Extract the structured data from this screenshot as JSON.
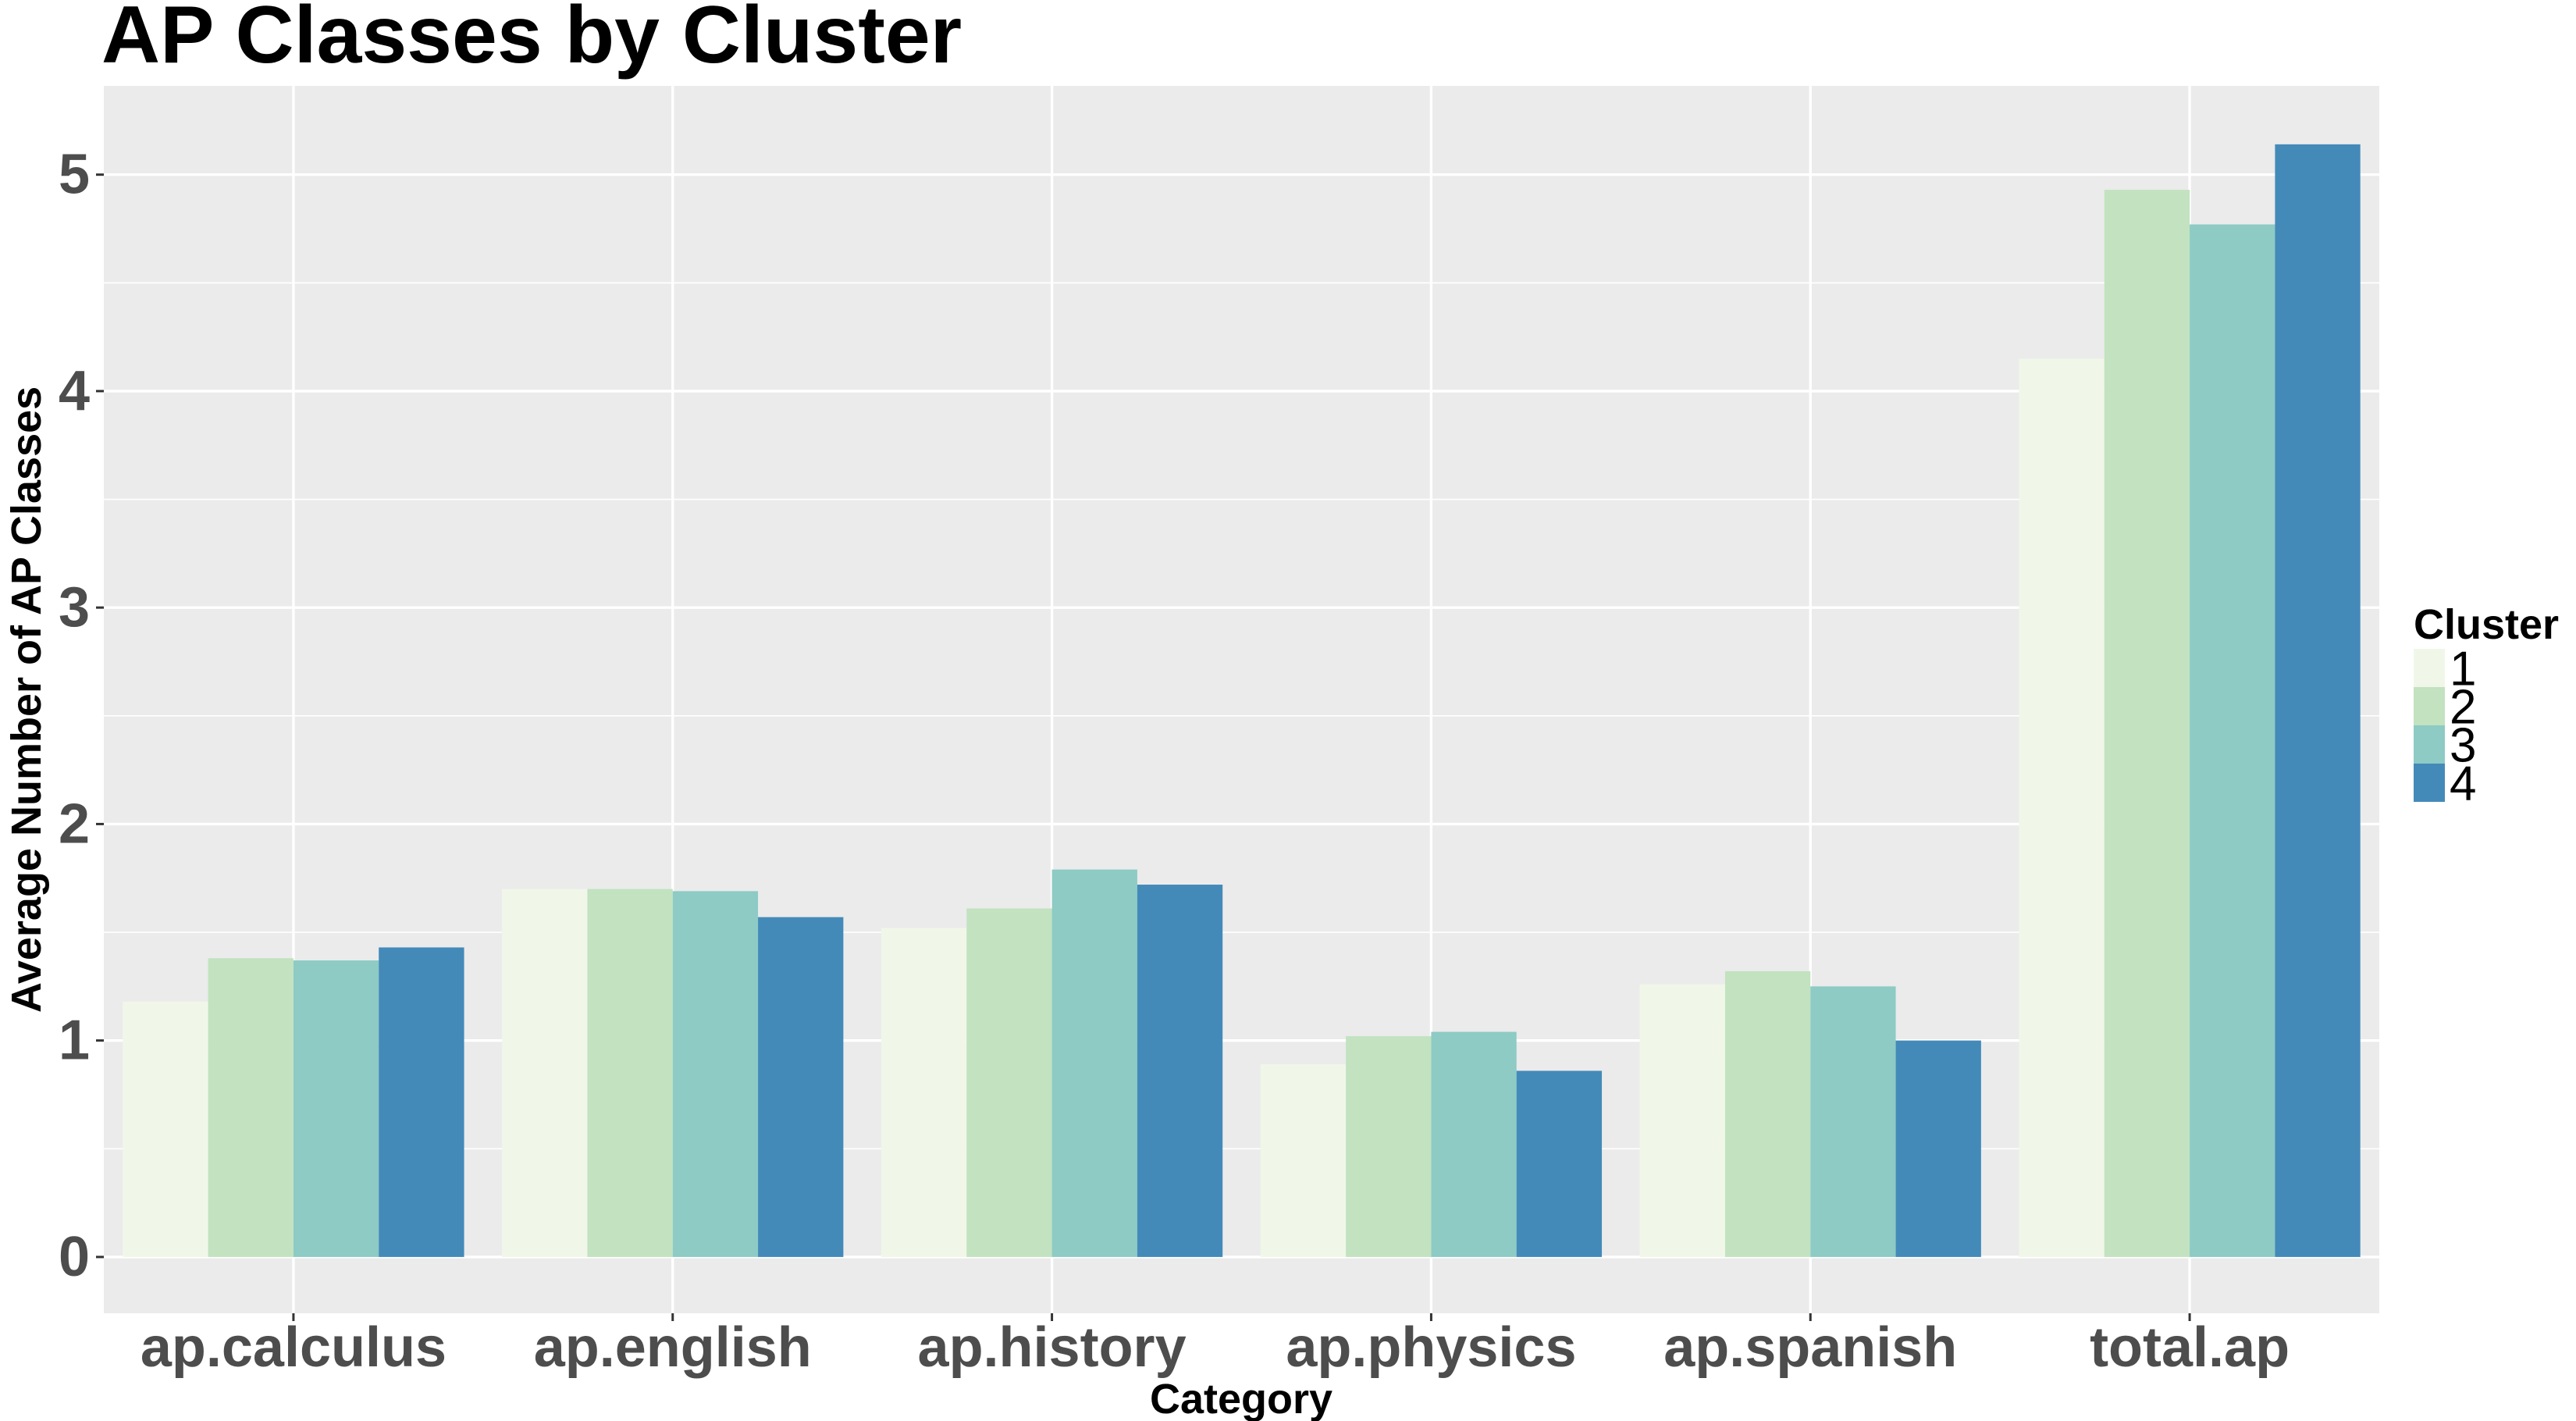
{
  "chart_data": {
    "type": "bar",
    "title": "AP Classes by Cluster",
    "xlabel": "Category",
    "ylabel": "Average Number of AP Classes",
    "categories": [
      "ap.calculus",
      "ap.english",
      "ap.history",
      "ap.physics",
      "ap.spanish",
      "total.ap"
    ],
    "series": [
      {
        "name": "1",
        "color": "#f0f7e9",
        "values": [
          1.18,
          1.7,
          1.52,
          0.89,
          1.26,
          4.15
        ]
      },
      {
        "name": "2",
        "color": "#c2e2c0",
        "values": [
          1.38,
          1.7,
          1.61,
          1.02,
          1.32,
          4.93
        ]
      },
      {
        "name": "3",
        "color": "#8dcbc4",
        "values": [
          1.37,
          1.69,
          1.79,
          1.04,
          1.25,
          4.77
        ]
      },
      {
        "name": "4",
        "color": "#438ab9",
        "values": [
          1.43,
          1.57,
          1.72,
          0.86,
          1.0,
          5.14
        ]
      }
    ],
    "yticks": [
      0,
      1,
      2,
      3,
      4,
      5
    ],
    "ylim": [
      -0.26,
      5.41
    ],
    "grid": true,
    "legend_title": "Cluster",
    "legend_position": "right",
    "panel_background": "#ebebeb",
    "grid_color": "#ffffff"
  }
}
